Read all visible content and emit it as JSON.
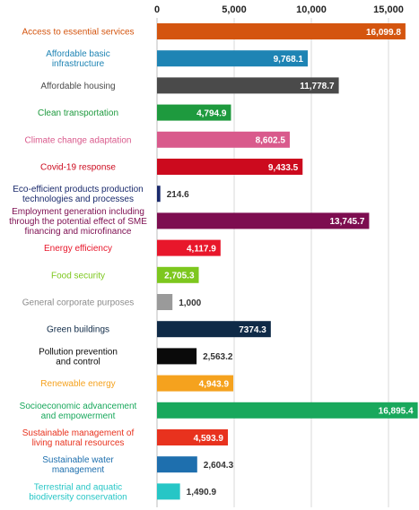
{
  "chart_data": {
    "type": "bar",
    "orientation": "horizontal",
    "title": "",
    "xlabel": "",
    "ylabel": "",
    "xlim": [
      0,
      16500
    ],
    "ticks": [
      0,
      5000,
      10000,
      15000
    ],
    "tick_labels": [
      "0",
      "5,000",
      "10,000",
      "15,000"
    ],
    "grid": true,
    "axis_position": "top",
    "categories": [
      {
        "label": [
          "Access to essential services"
        ],
        "value": 16099.8,
        "value_label": "16,099.8",
        "color": "#d4550f",
        "label_color": "#d4550f",
        "value_inside": true
      },
      {
        "label": [
          "Affordable basic",
          "infrastructure"
        ],
        "value": 9768.1,
        "value_label": "9,768.1",
        "color": "#1e84b4",
        "label_color": "#1e84b4",
        "value_inside": true
      },
      {
        "label": [
          "Affordable housing"
        ],
        "value": 11778.7,
        "value_label": "11,778.7",
        "color": "#4a4a4a",
        "label_color": "#4a4a4a",
        "value_inside": true
      },
      {
        "label": [
          "Clean transportation"
        ],
        "value": 4794.9,
        "value_label": "4,794.9",
        "color": "#1e9a3e",
        "label_color": "#1e9a3e",
        "value_inside": true
      },
      {
        "label": [
          "Climate change adaptation"
        ],
        "value": 8602.5,
        "value_label": "8,602.5",
        "color": "#d95a8c",
        "label_color": "#d95a8c",
        "value_inside": true
      },
      {
        "label": [
          "Covid-19 response"
        ],
        "value": 9433.5,
        "value_label": "9,433.5",
        "color": "#cc0a1e",
        "label_color": "#cc0a1e",
        "value_inside": true
      },
      {
        "label": [
          "Eco-efficient products production",
          "technologies and processes"
        ],
        "value": 214.6,
        "value_label": "214.6",
        "color": "#1a2a6c",
        "label_color": "#1a2a6c",
        "value_inside": false
      },
      {
        "label": [
          "Employment generation including",
          "through the potential effect of SME",
          "financing and microfinance"
        ],
        "value": 13745.7,
        "value_label": "13,745.7",
        "color": "#7d0d50",
        "label_color": "#7d0d50",
        "value_inside": true
      },
      {
        "label": [
          "Energy efficiency"
        ],
        "value": 4117.9,
        "value_label": "4,117.9",
        "color": "#e8172b",
        "label_color": "#e8172b",
        "value_inside": true
      },
      {
        "label": [
          "Food security"
        ],
        "value": 2705.3,
        "value_label": "2,705.3",
        "color": "#7dc71e",
        "label_color": "#7dc71e",
        "value_inside": true
      },
      {
        "label": [
          "General corporate purposes"
        ],
        "value": 1000,
        "value_label": "1,000",
        "color": "#9a9a9a",
        "label_color": "#8c8c8c",
        "value_inside": false
      },
      {
        "label": [
          "Green buildings"
        ],
        "value": 7374.3,
        "value_label": "7374.3",
        "color": "#0f2a47",
        "label_color": "#0f2a47",
        "value_inside": true
      },
      {
        "label": [
          "Pollution prevention",
          "and control"
        ],
        "value": 2563.2,
        "value_label": "2,563.2",
        "color": "#0a0a0a",
        "label_color": "#0a0a0a",
        "value_inside": false
      },
      {
        "label": [
          "Renewable energy"
        ],
        "value": 4943.9,
        "value_label": "4,943.9",
        "color": "#f5a21e",
        "label_color": "#f5a21e",
        "value_inside": true
      },
      {
        "label": [
          "Socioeconomic advancement",
          "and empowerment"
        ],
        "value": 16895.4,
        "value_label": "16,895.4",
        "color": "#19a85c",
        "label_color": "#19a85c",
        "value_inside": true
      },
      {
        "label": [
          "Sustainable management of",
          "living natural resources"
        ],
        "value": 4593.9,
        "value_label": "4,593.9",
        "color": "#e8321e",
        "label_color": "#e8321e",
        "value_inside": true
      },
      {
        "label": [
          "Sustainable water",
          "management"
        ],
        "value": 2604.3,
        "value_label": "2,604.3",
        "color": "#1e6fae",
        "label_color": "#1e6fae",
        "value_inside": false
      },
      {
        "label": [
          "Terrestrial and aquatic",
          "biodiversity conservation"
        ],
        "value": 1490.9,
        "value_label": "1,490.9",
        "color": "#26c6c6",
        "label_color": "#26c6c6",
        "value_inside": false
      }
    ]
  }
}
